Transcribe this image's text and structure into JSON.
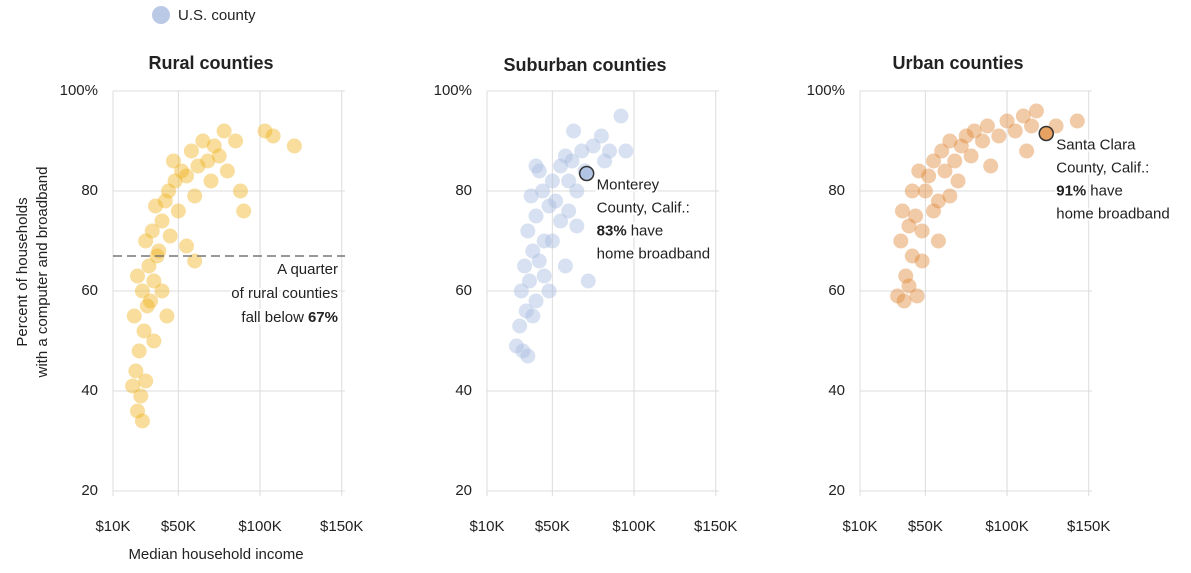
{
  "legend": {
    "label": "U.S. county",
    "color": "#a9bde0"
  },
  "y_axis_label": [
    "Percent of households",
    "with a computer and broadband"
  ],
  "x_axis_label": "Median household income",
  "chart_data": [
    {
      "type": "scatter",
      "title": "Rural counties",
      "color": "#f0b323",
      "xlim": [
        10000,
        152000
      ],
      "ylim": [
        20,
        100
      ],
      "xticks": [
        {
          "value": 10000,
          "label": "$10K"
        },
        {
          "value": 50000,
          "label": "$50K"
        },
        {
          "value": 100000,
          "label": "$100K"
        },
        {
          "value": 150000,
          "label": "$150K"
        }
      ],
      "yticks": [
        20,
        40,
        60,
        80,
        {
          "value": 100,
          "label": "100%"
        }
      ],
      "x": [
        25000,
        28000,
        22000,
        27000,
        24000,
        30000,
        26000,
        29000,
        23000,
        31000,
        28000,
        33000,
        35000,
        25000,
        32000,
        37000,
        30000,
        34000,
        38000,
        40000,
        36000,
        42000,
        45000,
        44000,
        48000,
        50000,
        52000,
        47000,
        55000,
        58000,
        60000,
        62000,
        65000,
        68000,
        70000,
        72000,
        75000,
        78000,
        80000,
        85000,
        88000,
        90000,
        103000,
        108000,
        121000,
        40000,
        55000,
        60000,
        35000,
        43000
      ],
      "y": [
        36,
        34,
        41,
        39,
        44,
        42,
        48,
        52,
        55,
        57,
        60,
        58,
        62,
        63,
        65,
        67,
        70,
        72,
        68,
        74,
        77,
        78,
        71,
        80,
        82,
        76,
        84,
        86,
        83,
        88,
        79,
        85,
        90,
        86,
        82,
        89,
        87,
        92,
        84,
        90,
        80,
        76,
        92,
        91,
        89,
        60,
        69,
        66,
        50,
        55
      ],
      "threshold": {
        "value": 67,
        "lines": [
          "A quarter",
          "of rural counties",
          "fall below"
        ],
        "bold": "67%"
      }
    },
    {
      "type": "scatter",
      "title": "Suburban counties",
      "color": "#a9bde0",
      "xlim": [
        10000,
        152000
      ],
      "ylim": [
        20,
        100
      ],
      "xticks": [
        {
          "value": 10000,
          "label": "$10K"
        },
        {
          "value": 50000,
          "label": "$50K"
        },
        {
          "value": 100000,
          "label": "$100K"
        },
        {
          "value": 150000,
          "label": "$150K"
        }
      ],
      "yticks": [
        20,
        40,
        60,
        80,
        {
          "value": 100,
          "label": "100%"
        }
      ],
      "x": [
        28000,
        32000,
        35000,
        30000,
        34000,
        38000,
        31000,
        36000,
        40000,
        33000,
        38000,
        42000,
        35000,
        40000,
        45000,
        37000,
        44000,
        48000,
        50000,
        42000,
        55000,
        52000,
        58000,
        60000,
        62000,
        65000,
        68000,
        70000,
        75000,
        80000,
        82000,
        85000,
        92000,
        95000,
        50000,
        55000,
        45000,
        48000,
        60000,
        65000,
        72000,
        58000,
        63000,
        40000
      ],
      "y": [
        49,
        48,
        47,
        53,
        56,
        55,
        60,
        62,
        58,
        65,
        68,
        66,
        72,
        75,
        70,
        79,
        80,
        77,
        82,
        84,
        85,
        78,
        87,
        82,
        86,
        80,
        88,
        84,
        89,
        91,
        86,
        88,
        95,
        88,
        70,
        74,
        63,
        60,
        76,
        73,
        62,
        65,
        92,
        85
      ],
      "highlight": {
        "x": 71000,
        "y": 83.5,
        "lines": [
          "Monterey",
          "County, Calif.:"
        ],
        "bold": "83%",
        "after": "have",
        "last": "home broadband"
      }
    },
    {
      "type": "scatter",
      "title": "Urban counties",
      "color": "#e08a3c",
      "xlim": [
        10000,
        152000
      ],
      "ylim": [
        20,
        100
      ],
      "xticks": [
        {
          "value": 10000,
          "label": "$10K"
        },
        {
          "value": 50000,
          "label": "$50K"
        },
        {
          "value": 100000,
          "label": "$100K"
        },
        {
          "value": 150000,
          "label": "$150K"
        }
      ],
      "yticks": [
        20,
        40,
        60,
        80,
        {
          "value": 100,
          "label": "100%"
        }
      ],
      "x": [
        33000,
        37000,
        40000,
        45000,
        38000,
        42000,
        35000,
        40000,
        36000,
        44000,
        48000,
        42000,
        50000,
        46000,
        52000,
        55000,
        58000,
        60000,
        62000,
        65000,
        68000,
        70000,
        72000,
        75000,
        78000,
        80000,
        85000,
        88000,
        90000,
        95000,
        100000,
        105000,
        110000,
        115000,
        118000,
        130000,
        143000,
        112000,
        55000,
        48000,
        58000,
        65000
      ],
      "y": [
        59,
        58,
        61,
        59,
        63,
        67,
        70,
        73,
        76,
        75,
        72,
        80,
        80,
        84,
        83,
        86,
        78,
        88,
        84,
        90,
        86,
        82,
        89,
        91,
        87,
        92,
        90,
        93,
        85,
        91,
        94,
        92,
        95,
        93,
        96,
        93,
        94,
        88,
        76,
        66,
        70,
        79
      ],
      "highlight": {
        "x": 124000,
        "y": 91.5,
        "lines": [
          "Santa Clara",
          "County, Calif.:"
        ],
        "bold": "91%",
        "after": "have",
        "last": "home broadband"
      }
    }
  ]
}
